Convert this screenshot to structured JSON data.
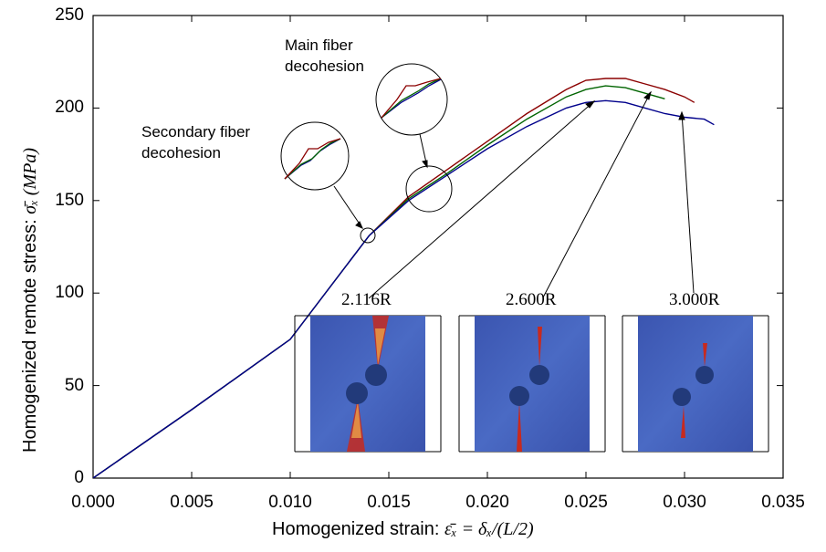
{
  "chart_data": {
    "type": "line",
    "title": "",
    "xlabel_prefix": "Homogenized strain:",
    "xlabel_math": "ε̄ₓ = δₓ/(L/2)",
    "ylabel_prefix": "Homogenized remote stress:",
    "ylabel_math": "σ̄ₓ (MPa)",
    "xlim": [
      0.0,
      0.035
    ],
    "ylim": [
      0,
      250
    ],
    "xticks": [
      "0.000",
      "0.005",
      "0.010",
      "0.015",
      "0.020",
      "0.025",
      "0.030",
      "0.035"
    ],
    "yticks": [
      "0",
      "50",
      "100",
      "150",
      "200",
      "250"
    ],
    "grid": false,
    "series": [
      {
        "color": "#8b0000",
        "x": [
          0.0,
          0.005,
          0.01,
          0.014,
          0.016,
          0.018,
          0.02,
          0.022,
          0.024,
          0.025,
          0.026,
          0.027,
          0.028,
          0.029,
          0.03,
          0.0305
        ],
        "y": [
          0,
          37,
          75,
          131,
          152,
          167,
          182,
          197,
          210,
          215,
          216,
          216,
          213,
          210,
          206,
          203
        ]
      },
      {
        "color": "#006400",
        "x": [
          0.0,
          0.005,
          0.01,
          0.014,
          0.016,
          0.018,
          0.02,
          0.022,
          0.024,
          0.025,
          0.026,
          0.027,
          0.028,
          0.029
        ],
        "y": [
          0,
          37,
          75,
          131,
          151,
          165,
          180,
          194,
          206,
          210,
          212,
          211,
          208,
          205
        ]
      },
      {
        "color": "#00008b",
        "x": [
          0.0,
          0.005,
          0.01,
          0.014,
          0.016,
          0.018,
          0.02,
          0.022,
          0.024,
          0.025,
          0.026,
          0.027,
          0.028,
          0.029,
          0.03,
          0.031,
          0.0315
        ],
        "y": [
          0,
          37,
          75,
          131,
          150,
          164,
          178,
          190,
          200,
          203,
          204,
          203,
          200,
          197,
          195,
          194,
          191
        ]
      }
    ],
    "annotations": [
      {
        "lines": [
          "Main fiber",
          "decohesion"
        ],
        "target": [
          0.0167,
          153
        ]
      },
      {
        "lines": [
          "Secondary fiber",
          "decohesion"
        ],
        "target": [
          0.014,
          131
        ]
      }
    ],
    "insets": [
      {
        "label": "2.116R",
        "arrow_target": [
          0.0252,
          204
        ]
      },
      {
        "label": "2.600R",
        "arrow_target": [
          0.0282,
          211
        ]
      },
      {
        "label": "3.000R",
        "arrow_target": [
          0.0297,
          205
        ]
      }
    ]
  }
}
